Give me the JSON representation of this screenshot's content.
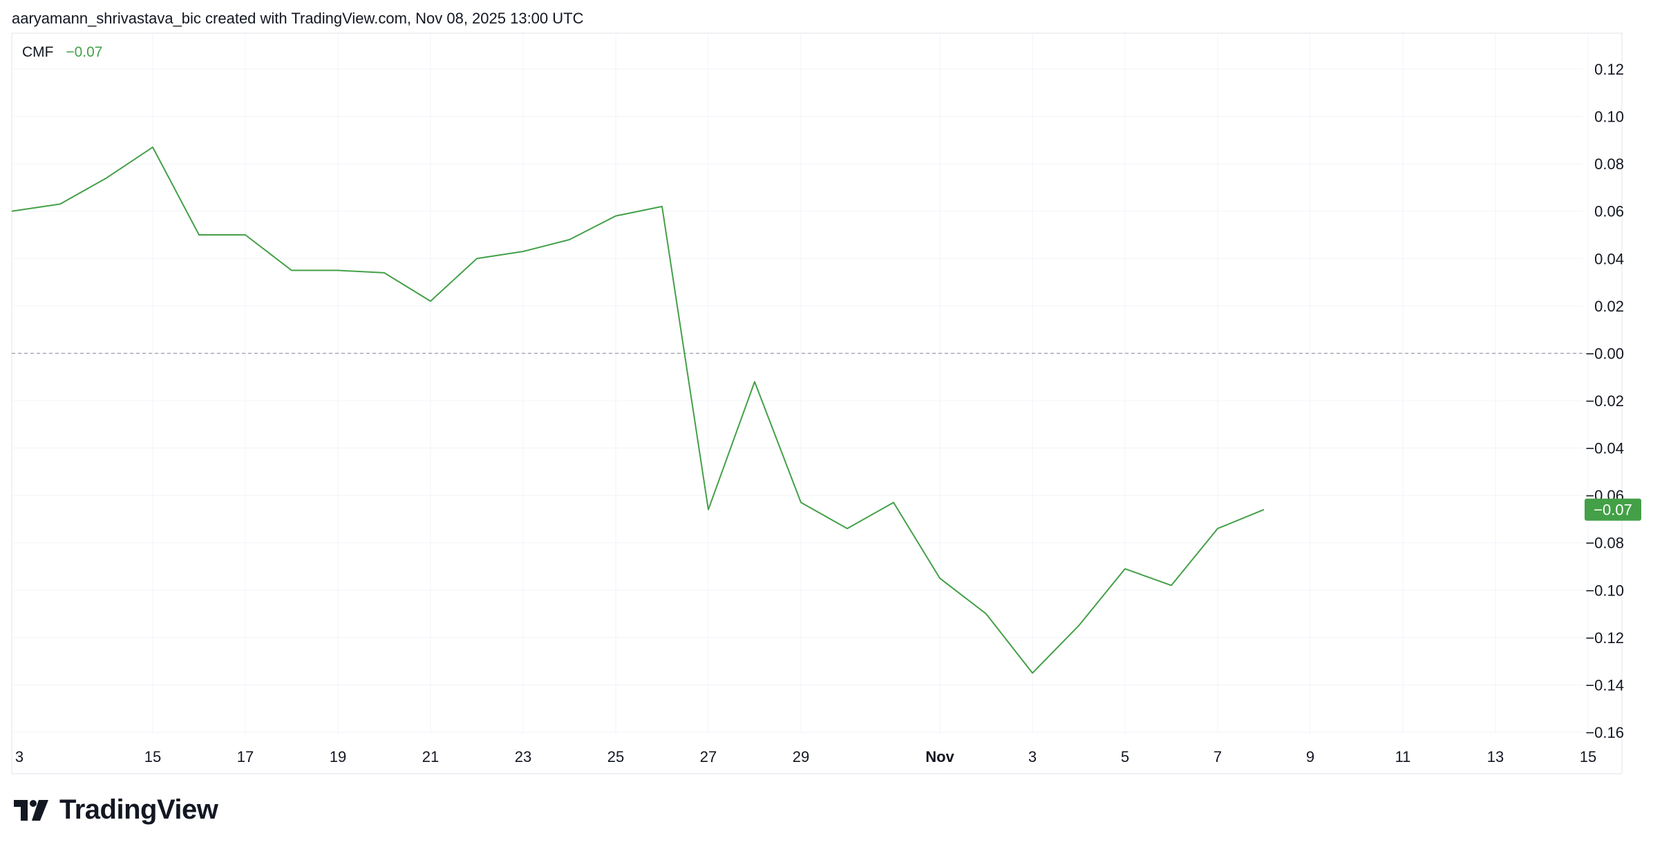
{
  "header": {
    "attribution": "aaryamann_shrivastava_bic created with TradingView.com, Nov 08, 2025 13:00 UTC"
  },
  "legend": {
    "name": "CMF",
    "value": "−0.07"
  },
  "brand": {
    "name": "TradingView",
    "logo_icon": "tradingview-logo-icon"
  },
  "colors": {
    "line": "#43a047",
    "badge_bg": "#43a047",
    "grid": "#f0f3fa",
    "zero_line": "#9598a1",
    "text": "#131722"
  },
  "chart_data": {
    "type": "line",
    "series": [
      {
        "name": "CMF",
        "x": [
          "Oct 12",
          "Oct 13",
          "Oct 14",
          "Oct 15",
          "Oct 16",
          "Oct 17",
          "Oct 18",
          "Oct 19",
          "Oct 20",
          "Oct 21",
          "Oct 22",
          "Oct 23",
          "Oct 24",
          "Oct 25",
          "Oct 26",
          "Oct 27",
          "Oct 28",
          "Oct 29",
          "Oct 30",
          "Oct 31",
          "Nov 1",
          "Nov 2",
          "Nov 3",
          "Nov 4",
          "Nov 5",
          "Nov 6",
          "Nov 7",
          "Nov 8"
        ],
        "values": [
          0.06,
          0.063,
          0.074,
          0.087,
          0.05,
          0.05,
          0.035,
          0.035,
          0.034,
          0.022,
          0.04,
          0.043,
          0.048,
          0.058,
          0.062,
          -0.066,
          -0.012,
          -0.063,
          -0.074,
          -0.063,
          -0.095,
          -0.11,
          -0.135,
          -0.115,
          -0.091,
          -0.098,
          -0.074,
          -0.066
        ]
      }
    ],
    "x_tick_labels": [
      "3",
      "15",
      "17",
      "19",
      "21",
      "23",
      "25",
      "27",
      "29",
      "Nov",
      "3",
      "5",
      "7",
      "9",
      "11",
      "13",
      "15"
    ],
    "y_tick_labels": [
      "0.12",
      "0.10",
      "0.08",
      "0.06",
      "0.04",
      "0.02",
      "−0.00",
      "−0.02",
      "−0.04",
      "−0.06",
      "−0.08",
      "−0.10",
      "−0.12",
      "−0.14",
      "−0.16"
    ],
    "ylim": [
      -0.16,
      0.12
    ],
    "reference_line": 0.0,
    "last_value_label": "−0.07",
    "last_value": -0.066,
    "grid": true
  }
}
